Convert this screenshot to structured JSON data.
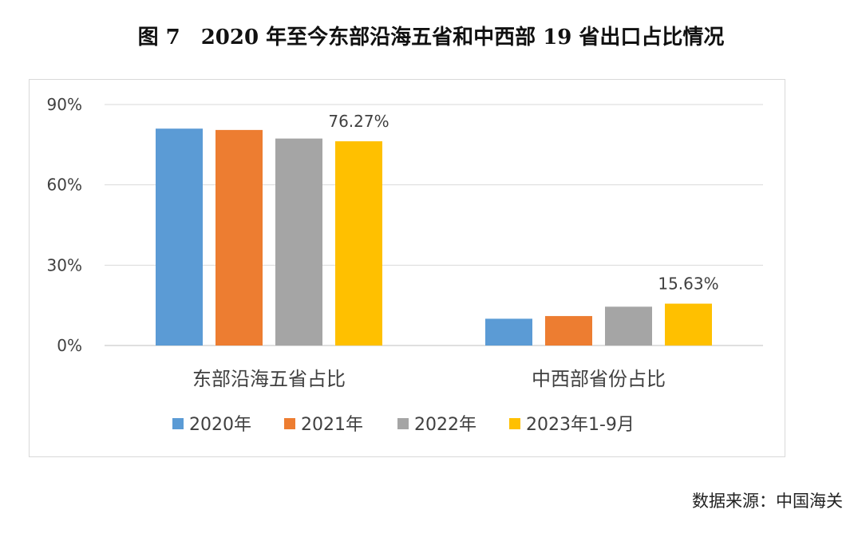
{
  "figure": {
    "title": "图 7　2020 年至今东部沿海五省和中西部 19 省出口占比情况",
    "source": "数据来源：中国海关"
  },
  "chart_data": {
    "type": "bar",
    "categories": [
      "东部沿海五省占比",
      "中西部省份占比"
    ],
    "series": [
      {
        "name": "2020年",
        "color": "#5B9BD5",
        "values": [
          81.0,
          10.0
        ]
      },
      {
        "name": "2021年",
        "color": "#ED7D31",
        "values": [
          80.5,
          11.0
        ]
      },
      {
        "name": "2022年",
        "color": "#A5A5A5",
        "values": [
          77.3,
          14.5
        ]
      },
      {
        "name": "2023年1-9月",
        "color": "#FFC000",
        "values": [
          76.27,
          15.63
        ]
      }
    ],
    "data_labels": [
      {
        "series": 3,
        "category": 0,
        "text": "76.27%"
      },
      {
        "series": 3,
        "category": 1,
        "text": "15.63%"
      }
    ],
    "yticks": [
      "0%",
      "30%",
      "60%",
      "90%"
    ],
    "ytick_values": [
      0,
      30,
      60,
      90
    ],
    "ylim": [
      0,
      90
    ],
    "grid": true,
    "legend_position": "bottom"
  }
}
